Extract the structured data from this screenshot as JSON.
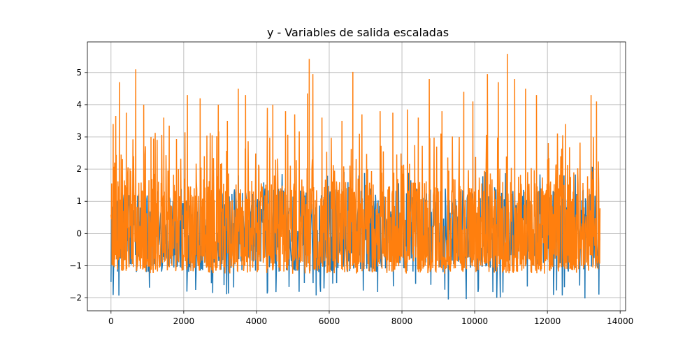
{
  "chart_data": {
    "type": "line",
    "title": "y - Variables de salida escaladas",
    "xlabel": "",
    "ylabel": "",
    "xlim": [
      -650,
      14150
    ],
    "ylim": [
      -2.4,
      5.95
    ],
    "xticks": [
      0,
      2000,
      4000,
      6000,
      8000,
      10000,
      12000,
      14000
    ],
    "xtick_labels": [
      "0",
      "2000",
      "4000",
      "6000",
      "8000",
      "10000",
      "12000",
      "14000"
    ],
    "yticks": [
      -2,
      -1,
      0,
      1,
      2,
      3,
      4,
      5
    ],
    "ytick_labels": [
      "−2",
      "−1",
      "0",
      "1",
      "2",
      "3",
      "4",
      "5"
    ],
    "grid": true,
    "legend": "none",
    "series": [
      {
        "color": "#1f77b4",
        "n_points": 13450,
        "range": [
          -2.05,
          2.1
        ],
        "note_values": {
          "typical_min": -1.3,
          "min": -2.05,
          "max": 2.1
        }
      },
      {
        "color": "#ff7f0e",
        "n_points": 13450,
        "range": [
          -1.3,
          5.6
        ],
        "peaks": [
          [
            60,
            3.4
          ],
          [
            130,
            3.65
          ],
          [
            230,
            4.7
          ],
          [
            420,
            3.75
          ],
          [
            680,
            5.1
          ],
          [
            900,
            4.0
          ],
          [
            1100,
            3.0
          ],
          [
            1450,
            3.6
          ],
          [
            1600,
            3.35
          ],
          [
            2100,
            4.3
          ],
          [
            2450,
            4.2
          ],
          [
            2950,
            4.0
          ],
          [
            3200,
            3.5
          ],
          [
            3500,
            4.5
          ],
          [
            3700,
            4.3
          ],
          [
            4300,
            3.9
          ],
          [
            4450,
            4.0
          ],
          [
            4800,
            3.8
          ],
          [
            5050,
            3.7
          ],
          [
            5400,
            4.35
          ],
          [
            5450,
            5.42
          ],
          [
            5550,
            4.95
          ],
          [
            5800,
            3.6
          ],
          [
            6350,
            3.5
          ],
          [
            6650,
            5.02
          ],
          [
            6900,
            3.7
          ],
          [
            7400,
            3.8
          ],
          [
            7750,
            3.75
          ],
          [
            8150,
            3.85
          ],
          [
            8450,
            3.6
          ],
          [
            8750,
            4.8
          ],
          [
            9100,
            3.8
          ],
          [
            9700,
            4.4
          ],
          [
            9950,
            4.1
          ],
          [
            10350,
            4.95
          ],
          [
            10650,
            4.7
          ],
          [
            10900,
            5.58
          ],
          [
            11100,
            4.8
          ],
          [
            11400,
            4.5
          ],
          [
            11700,
            4.3
          ],
          [
            12500,
            3.4
          ],
          [
            13200,
            4.3
          ],
          [
            13350,
            4.1
          ]
        ]
      }
    ]
  }
}
